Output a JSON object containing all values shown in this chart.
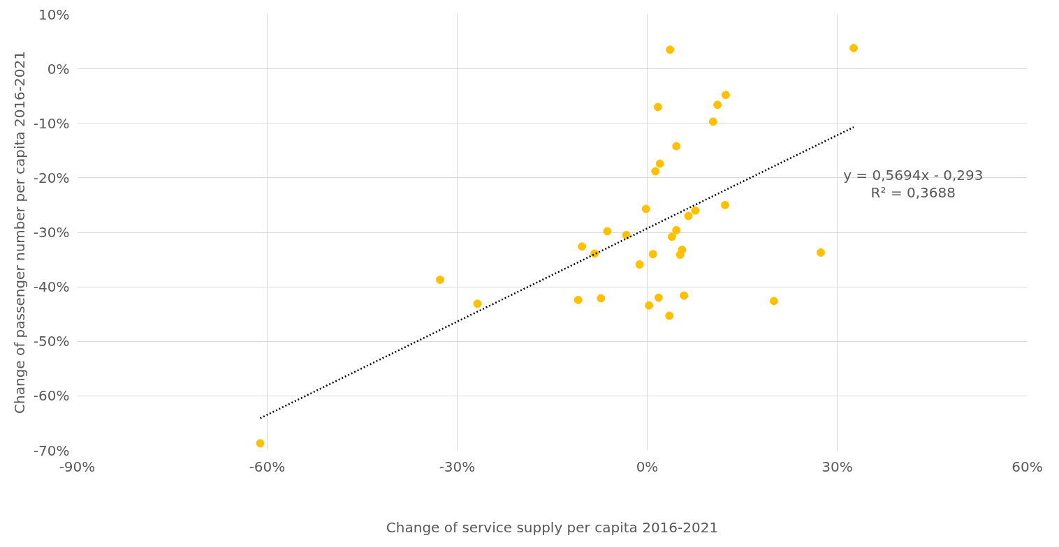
{
  "chart_data": {
    "type": "scatter",
    "xlabel": "Change of service supply per capita 2016-2021",
    "ylabel": "Change of passenger number per capita 2016-2021",
    "annotations": [
      "y = 0,5694x - 0,293",
      "R² = 0,3688"
    ],
    "grid": true,
    "xlim": [
      -90,
      60
    ],
    "xticks": [
      {
        "value": -90,
        "label": "-90%"
      },
      {
        "value": -60,
        "label": "-60%"
      },
      {
        "value": -30,
        "label": "-30%"
      },
      {
        "value": 0,
        "label": "0%"
      },
      {
        "value": 30,
        "label": "30%"
      },
      {
        "value": 60,
        "label": "60%"
      }
    ],
    "ylim": [
      -70,
      10
    ],
    "yticks": [
      {
        "value": -70,
        "label": "-70%"
      },
      {
        "value": -60,
        "label": "-60%"
      },
      {
        "value": -50,
        "label": "-50%"
      },
      {
        "value": -40,
        "label": "-40%"
      },
      {
        "value": -30,
        "label": "-30%"
      },
      {
        "value": -20,
        "label": "-20%"
      },
      {
        "value": -10,
        "label": "-10%"
      },
      {
        "value": 0,
        "label": "0%"
      },
      {
        "value": 10,
        "label": "10%"
      }
    ],
    "series": [
      {
        "marker": "circle",
        "color": "#ffc000",
        "x": [
          3.6,
          32.6,
          12.4,
          11.1,
          1.7,
          10.4,
          4.6,
          2.0,
          1.3,
          12.3,
          -0.2,
          7.6,
          6.5,
          4.6,
          -6.3,
          -3.3,
          3.9,
          -10.3,
          5.5,
          -8.3,
          0.9,
          5.2,
          27.4,
          -1.2,
          -32.7,
          5.8,
          1.8,
          -7.3,
          -10.9,
          20.0,
          -26.8,
          0.3,
          3.5,
          -61.1
        ],
        "values": [
          3.5,
          3.8,
          -4.8,
          -6.6,
          -7.0,
          -9.7,
          -14.2,
          -17.4,
          -18.8,
          -25.0,
          -25.7,
          -26.0,
          -27.0,
          -29.6,
          -29.8,
          -30.5,
          -30.8,
          -32.6,
          -33.2,
          -33.9,
          -34.0,
          -34.1,
          -33.7,
          -35.9,
          -38.7,
          -41.6,
          -42.0,
          -42.1,
          -42.4,
          -42.6,
          -43.1,
          -43.4,
          -45.3,
          -68.7
        ]
      },
      {
        "type": "line",
        "color": "#000000",
        "line_style": "dotted",
        "x": [
          -61.1,
          32.6
        ],
        "values": [
          -64.1,
          -10.7
        ]
      }
    ]
  }
}
